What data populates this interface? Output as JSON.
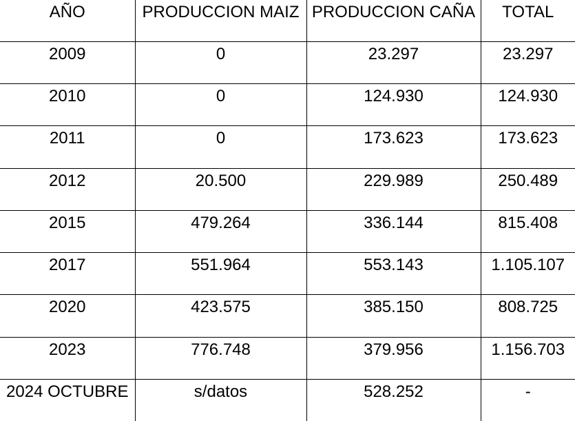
{
  "table": {
    "headers": [
      "AÑO",
      "PRODUCCION MAIZ",
      "PRODUCCION CAÑA",
      "TOTAL"
    ],
    "rows": [
      [
        "2009",
        "0",
        "23.297",
        "23.297"
      ],
      [
        "2010",
        "0",
        "124.930",
        "124.930"
      ],
      [
        "2011",
        "0",
        "173.623",
        "173.623"
      ],
      [
        "2012",
        "20.500",
        "229.989",
        "250.489"
      ],
      [
        "2015",
        "479.264",
        "336.144",
        "815.408"
      ],
      [
        "2017",
        "551.964",
        "553.143",
        "1.105.107"
      ],
      [
        "2020",
        "423.575",
        "385.150",
        "808.725"
      ],
      [
        "2023",
        "776.748",
        "379.956",
        "1.156.703"
      ],
      [
        "2024 OCTUBRE",
        "s/datos",
        "528.252",
        "-"
      ]
    ]
  }
}
